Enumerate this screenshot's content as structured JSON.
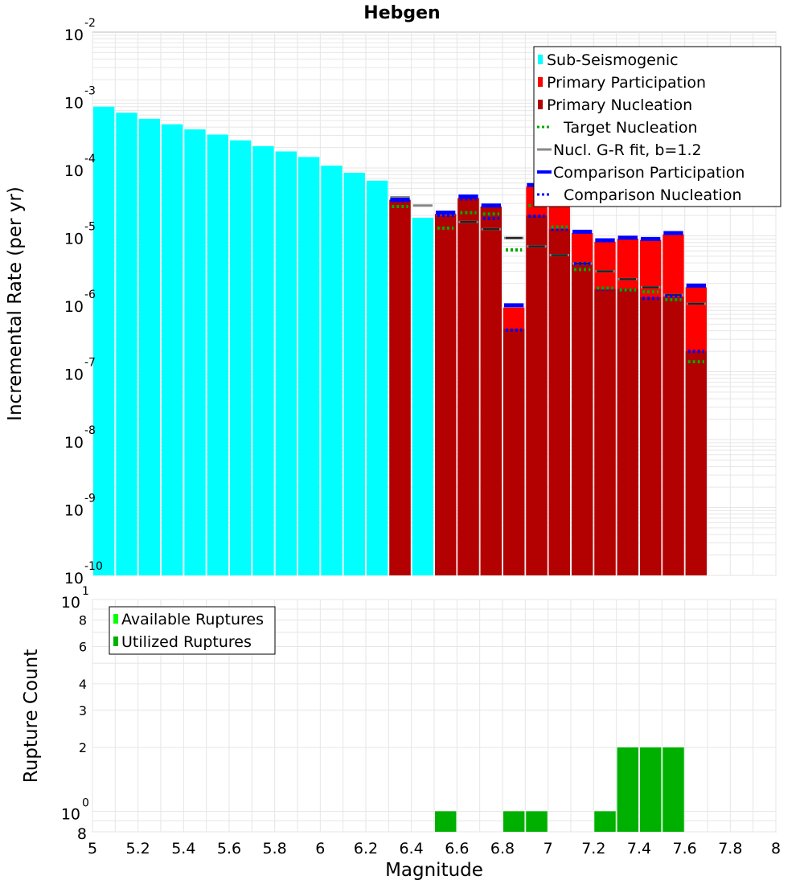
{
  "chart_data": {
    "title": "Hebgen",
    "type": "bar",
    "xlabel": "Magnitude",
    "xlim": [
      5,
      8
    ],
    "x_ticks": [
      "5",
      "5.2",
      "5.4",
      "5.6",
      "5.8",
      "6",
      "6.2",
      "6.4",
      "6.6",
      "6.8",
      "7",
      "7.2",
      "7.4",
      "7.6",
      "7.8",
      "8"
    ],
    "bin_width": 0.1,
    "top_panel": {
      "ylabel": "Incremental Rate (per yr)",
      "yscale": "log",
      "ylim": [
        1e-10,
        0.01
      ],
      "y_ticks": [
        {
          "base": "10",
          "exp": "-2"
        },
        {
          "base": "10",
          "exp": "-3"
        },
        {
          "base": "10",
          "exp": "-4"
        },
        {
          "base": "10",
          "exp": "-5"
        },
        {
          "base": "10",
          "exp": "-6"
        },
        {
          "base": "10",
          "exp": "-7"
        },
        {
          "base": "10",
          "exp": "-8"
        },
        {
          "base": "10",
          "exp": "-9"
        },
        {
          "base": "10",
          "exp": "-10"
        }
      ],
      "legend": [
        {
          "label": "Sub-Seismogenic",
          "color": "#00ffff",
          "style": "bar"
        },
        {
          "label": "Primary Participation",
          "color": "#ff0000",
          "style": "bar"
        },
        {
          "label": "Primary Nucleation",
          "color": "#b30000",
          "style": "bar"
        },
        {
          "label": "Target Nucleation",
          "color": "#00aa00",
          "style": "dotted"
        },
        {
          "label": "Nucl. G-R fit, b=1.2",
          "color": "#888888",
          "style": "solid"
        },
        {
          "label": "Comparison Participation",
          "color": "#0000ff",
          "style": "thick"
        },
        {
          "label": "Comparison Nucleation",
          "color": "#0000ff",
          "style": "dotted"
        }
      ],
      "series": [
        {
          "name": "Sub-Seismogenic",
          "color": "#00ffff",
          "x": [
            5.05,
            5.15,
            5.25,
            5.35,
            5.45,
            5.55,
            5.65,
            5.75,
            5.85,
            5.95,
            6.05,
            6.15,
            6.25,
            6.45
          ],
          "values": [
            0.0008,
            0.00065,
            0.00053,
            0.00044,
            0.00037,
            0.00031,
            0.000255,
            0.00021,
            0.000175,
            0.000145,
            0.000108,
            8.5e-05,
            6.5e-05,
            1.85e-05
          ]
        },
        {
          "name": "Primary Participation",
          "color": "#ff0000",
          "x": [
            6.35,
            6.55,
            6.65,
            6.75,
            6.85,
            6.95,
            7.05,
            7.15,
            7.25,
            7.35,
            7.45,
            7.55,
            7.65
          ],
          "values": [
            3.4e-05,
            2.1e-05,
            3.6e-05,
            2.7e-05,
            8.8e-07,
            5.3e-05,
            3.4e-05,
            1.1e-05,
            8.2e-06,
            9e-06,
            8.7e-06,
            1.05e-05,
            1.75e-06
          ]
        },
        {
          "name": "Primary Nucleation",
          "color": "#b30000",
          "x": [
            6.35,
            6.55,
            6.65,
            6.75,
            6.85,
            6.95,
            7.05,
            7.15,
            7.25,
            7.35,
            7.45,
            7.55,
            7.65
          ],
          "values": [
            3.4e-05,
            2.1e-05,
            3.6e-05,
            2.7e-05,
            4.3e-07,
            2e-05,
            1.25e-05,
            3.9e-06,
            1.65e-06,
            1.65e-06,
            1.25e-06,
            1.25e-06,
            2e-07
          ]
        },
        {
          "name": "Target Nucleation",
          "color": "#00aa00",
          "x": [
            6.35,
            6.55,
            6.65,
            6.75,
            6.85,
            6.95,
            7.05,
            7.15,
            7.25,
            7.35,
            7.45,
            7.55,
            7.65
          ],
          "values": [
            2.7e-05,
            1.3e-05,
            2.2e-05,
            2.1e-05,
            6.2e-06,
            2.8e-05,
            1.35e-05,
            3.2e-06,
            1.7e-06,
            1.6e-06,
            1.5e-06,
            1.15e-06,
            1.4e-07
          ]
        },
        {
          "name": "Nucl. G-R fit, b=1.2",
          "color": "#888888",
          "x": [
            6.35,
            6.45,
            6.55,
            6.65,
            6.75,
            6.85,
            6.95,
            7.05,
            7.15,
            7.25,
            7.35,
            7.45,
            7.55,
            7.65
          ],
          "values": [
            3.7e-05,
            2.8e-05,
            2.1e-05,
            1.6e-05,
            1.25e-05,
            9.3e-06,
            7e-06,
            5.2e-06,
            3.9e-06,
            3e-06,
            2.3e-06,
            1.75e-06,
            1.35e-06,
            1e-06
          ]
        },
        {
          "name": "Comparison Participation",
          "color": "#0000ff",
          "x": [
            6.35,
            6.55,
            6.65,
            6.75,
            6.85,
            6.95,
            7.05,
            7.15,
            7.25,
            7.35,
            7.45,
            7.55,
            7.65
          ],
          "values": [
            3.4e-05,
            2.2e-05,
            3.8e-05,
            2.8e-05,
            9.5e-07,
            5.6e-05,
            3.5e-05,
            1.15e-05,
            8.6e-06,
            9.4e-06,
            9e-06,
            1.1e-05,
            1.85e-06
          ]
        },
        {
          "name": "Comparison Nucleation",
          "color": "#0000ff",
          "x": [
            6.35,
            6.55,
            6.65,
            6.75,
            6.85,
            6.95,
            7.05,
            7.15,
            7.25,
            7.35,
            7.45,
            7.55,
            7.65
          ],
          "values": [
            3.3e-05,
            2e-05,
            3.5e-05,
            1.8e-05,
            4.1e-07,
            1.95e-05,
            1.25e-05,
            3.9e-06,
            1.65e-06,
            1.6e-06,
            1.2e-06,
            1.3e-06,
            2e-07
          ]
        }
      ]
    },
    "bottom_panel": {
      "ylabel": "Rupture Count",
      "yscale": "log",
      "ylim": [
        0.8,
        10
      ],
      "y_ticks": [
        {
          "label": "8",
          "value": 8
        },
        {
          "label": "6",
          "value": 6
        },
        {
          "label": "4",
          "value": 4
        },
        {
          "label": "3",
          "value": 3
        },
        {
          "label": "2",
          "value": 2
        }
      ],
      "y_major_ticks": [
        {
          "base": "10",
          "exp": "1",
          "value": 10
        },
        {
          "base": "10",
          "exp": "0",
          "value": 1
        }
      ],
      "y_bottom_label": {
        "label": "8",
        "value": 0.8
      },
      "legend": [
        {
          "label": "Available Ruptures",
          "color": "#00ff00"
        },
        {
          "label": "Utilized Ruptures",
          "color": "#00b000"
        }
      ],
      "series": [
        {
          "name": "Available Ruptures",
          "color": "#00ff00",
          "x": [
            6.55,
            6.85,
            6.95,
            7.25,
            7.35,
            7.45,
            7.55
          ],
          "values": [
            1,
            1,
            1,
            1,
            2,
            2,
            2
          ]
        },
        {
          "name": "Utilized Ruptures",
          "color": "#00b000",
          "x": [
            6.55,
            6.85,
            6.95,
            7.25,
            7.35,
            7.45,
            7.55
          ],
          "values": [
            1,
            1,
            1,
            1,
            2,
            2,
            2
          ]
        }
      ]
    }
  }
}
